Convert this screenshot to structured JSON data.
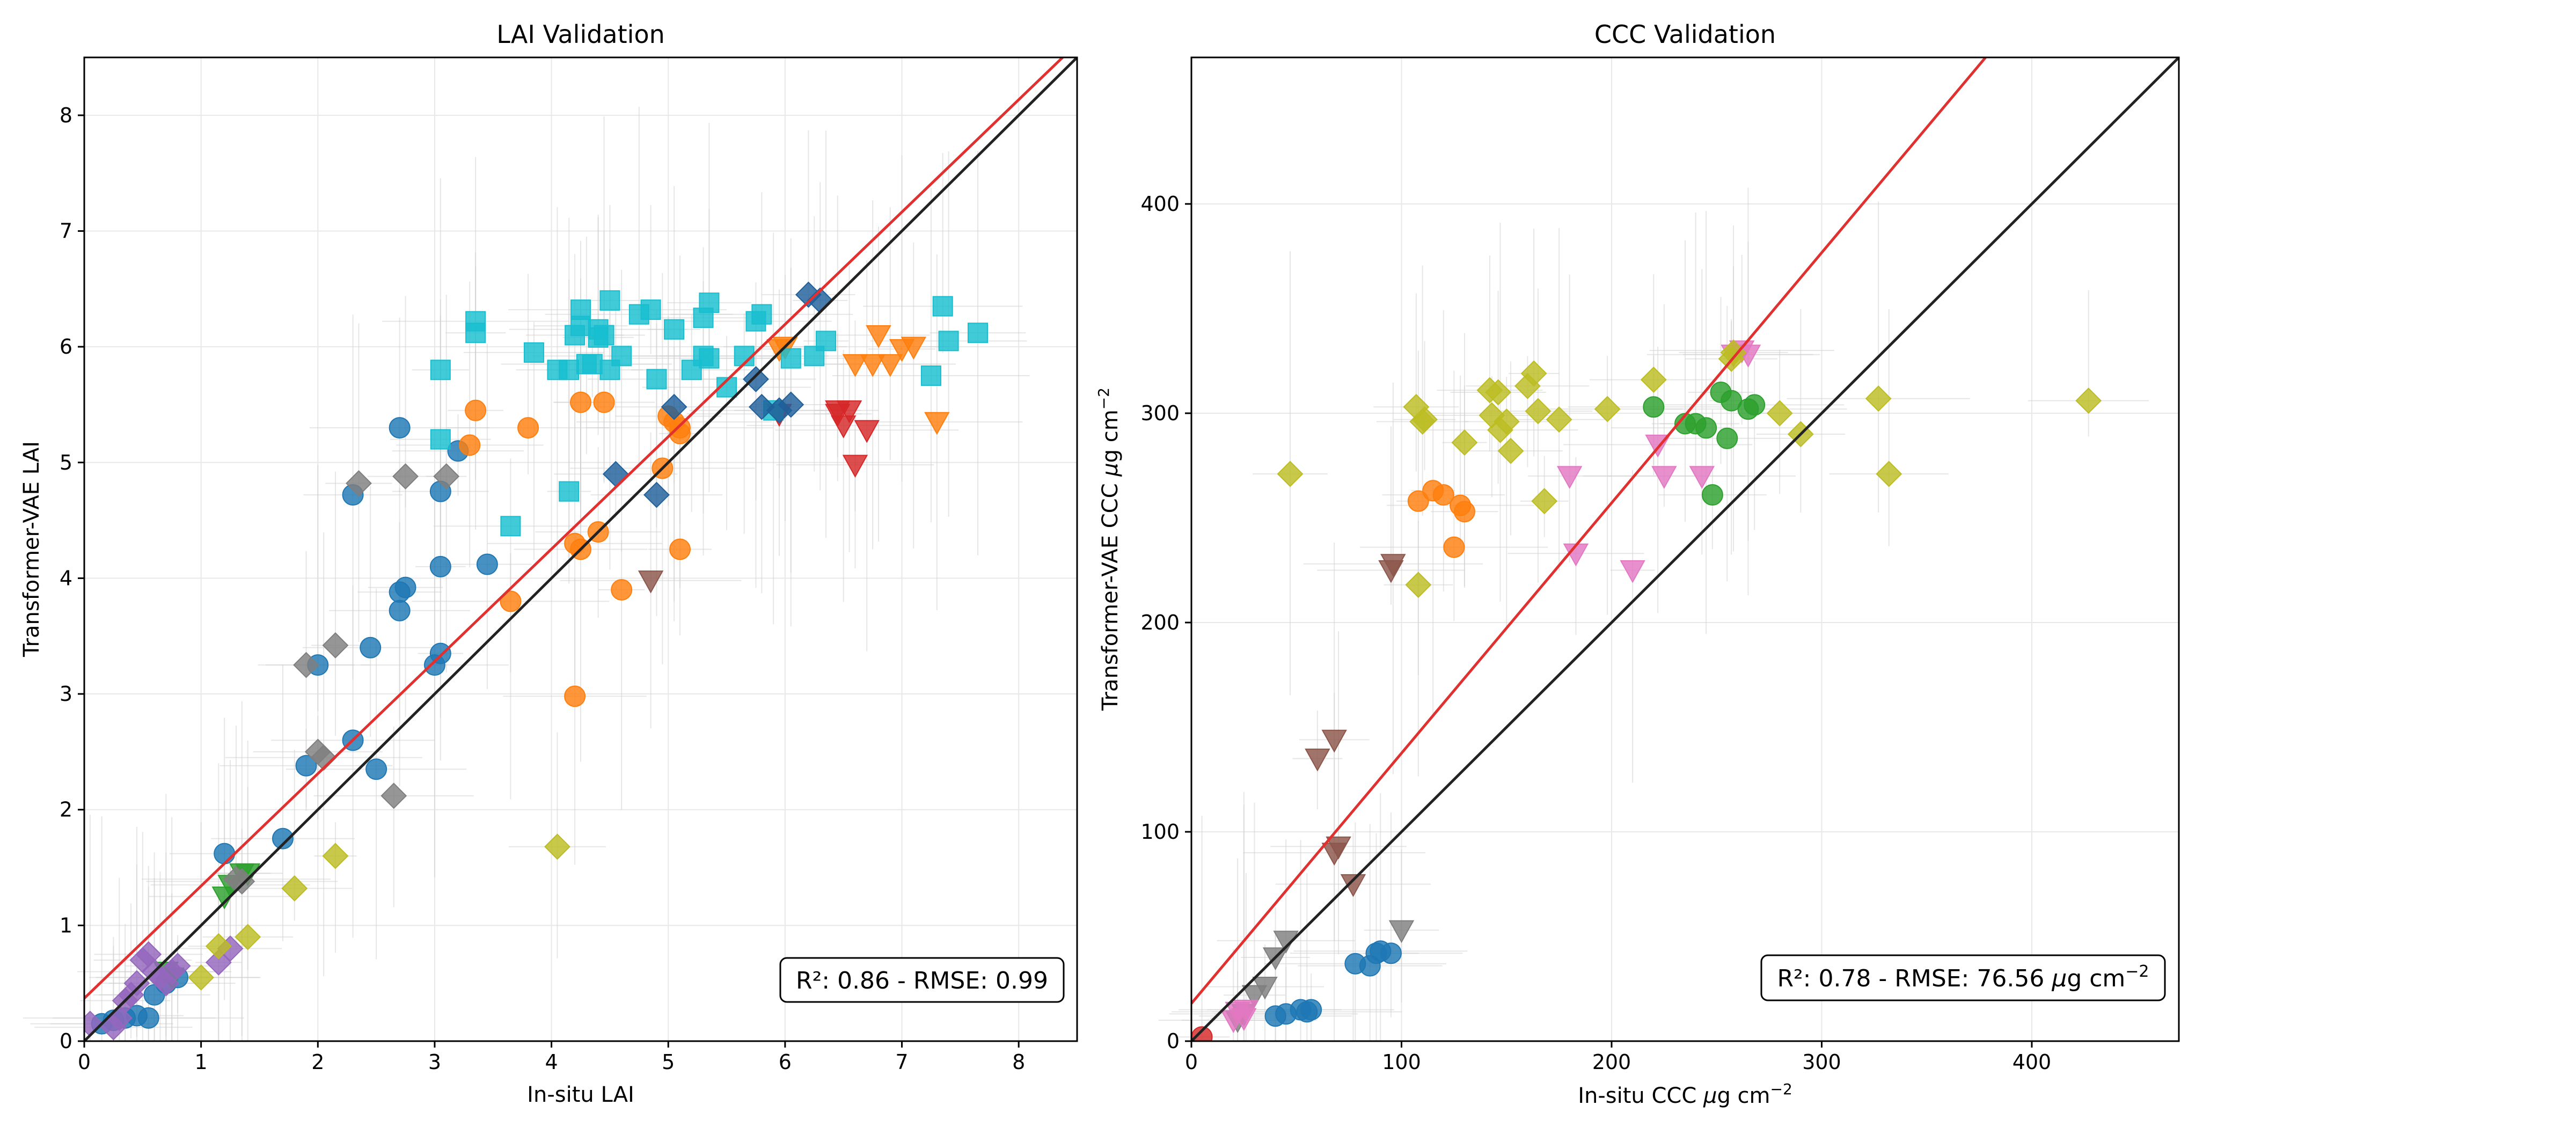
{
  "charts": [
    {
      "type": "scatter",
      "title": "LAI Validation",
      "xlabel": "In-situ LAI",
      "ylabel": "Transformer-VAE LAI",
      "xlim": [
        0,
        8.5
      ],
      "ylim": [
        0,
        8.5
      ],
      "xticks": [
        "0",
        "1",
        "2",
        "3",
        "4",
        "5",
        "6",
        "7",
        "8"
      ],
      "yticks": [
        "0",
        "1",
        "2",
        "3",
        "4",
        "5",
        "6",
        "7",
        "8"
      ],
      "grid": true,
      "annotation": "R²: 0.86 - RMSE: 0.99",
      "annotation_position": "bottom-right",
      "one_to_one_line": {
        "color": "#222222"
      },
      "regression_line": {
        "color": "#e03030",
        "x": [
          0,
          8.5
        ],
        "y": [
          0.37,
          8.62
        ]
      },
      "series": [
        {
          "color": "#1f77b4",
          "marker": "circle",
          "x": [
            0.15,
            0.25,
            0.35,
            0.45,
            0.55,
            0.6,
            0.7,
            0.8,
            1.2,
            1.7,
            1.9,
            2.0,
            2.3,
            2.3,
            2.45,
            2.5,
            2.7,
            2.7,
            2.75,
            2.7,
            3.0,
            3.05,
            3.05,
            3.05,
            3.2,
            3.45
          ],
          "y": [
            0.15,
            0.18,
            0.2,
            0.22,
            0.2,
            0.4,
            0.5,
            0.55,
            1.62,
            1.75,
            2.38,
            3.25,
            2.6,
            4.72,
            3.4,
            2.35,
            3.72,
            3.88,
            3.92,
            5.3,
            3.25,
            3.35,
            4.75,
            4.1,
            5.1,
            4.12
          ]
        },
        {
          "color": "#ff7f0e",
          "marker": "circle",
          "x": [
            3.3,
            3.35,
            3.65,
            3.8,
            4.2,
            4.2,
            4.25,
            4.25,
            4.4,
            4.45,
            4.6,
            4.95,
            5.0,
            5.05,
            5.1,
            5.1,
            5.1
          ],
          "y": [
            5.15,
            5.45,
            3.8,
            5.3,
            4.3,
            2.98,
            4.25,
            5.52,
            4.4,
            5.52,
            3.9,
            4.95,
            5.4,
            5.35,
            5.25,
            5.3,
            4.25
          ]
        },
        {
          "color": "#ff7f0e",
          "marker": "triangle-down",
          "x": [
            5.95,
            6.6,
            6.75,
            6.8,
            6.9,
            7.0,
            7.1,
            7.3,
            6.0
          ],
          "y": [
            5.98,
            5.85,
            5.85,
            6.1,
            5.85,
            5.98,
            6.0,
            5.35,
            6.0
          ]
        },
        {
          "color": "#2ca02c",
          "marker": "triangle-down",
          "x": [
            1.2,
            1.25,
            1.35,
            1.4,
            0.7,
            0.75
          ],
          "y": [
            1.25,
            1.35,
            1.45,
            1.45,
            0.6,
            0.55
          ]
        },
        {
          "color": "#d62728",
          "marker": "triangle-down",
          "x": [
            5.95,
            6.45,
            6.5,
            6.55,
            6.7,
            6.6,
            6.45
          ],
          "y": [
            5.42,
            5.45,
            5.32,
            5.45,
            5.28,
            4.98,
            5.42
          ]
        },
        {
          "color": "#9467bd",
          "marker": "diamond",
          "x": [
            0.05,
            0.25,
            0.3,
            0.35,
            0.4,
            0.45,
            0.5,
            0.55,
            0.6,
            0.65,
            0.7,
            0.75,
            0.8,
            1.15,
            1.25
          ],
          "y": [
            0.15,
            0.12,
            0.2,
            0.35,
            0.4,
            0.5,
            0.7,
            0.75,
            0.6,
            0.55,
            0.5,
            0.6,
            0.65,
            0.68,
            0.8
          ]
        },
        {
          "color": "#8c564b",
          "marker": "triangle-down",
          "x": [
            4.85
          ],
          "y": [
            3.98
          ]
        },
        {
          "color": "#7f7f7f",
          "marker": "diamond",
          "x": [
            1.3,
            1.35,
            1.9,
            2.0,
            2.05,
            2.15,
            2.35,
            2.65,
            2.75,
            3.1
          ],
          "y": [
            1.4,
            1.38,
            3.25,
            2.5,
            2.45,
            3.42,
            4.82,
            2.12,
            4.88,
            4.88
          ]
        },
        {
          "color": "#bcbd22",
          "marker": "diamond",
          "x": [
            1.0,
            1.15,
            1.4,
            1.8,
            2.15,
            4.05
          ],
          "y": [
            0.55,
            0.82,
            0.9,
            1.32,
            1.6,
            1.68
          ]
        },
        {
          "color": "#17becf",
          "marker": "square",
          "x": [
            3.35,
            3.35,
            3.05,
            3.05,
            3.65,
            3.85,
            4.05,
            4.15,
            4.2,
            4.25,
            4.25,
            4.3,
            4.35,
            4.4,
            4.45,
            4.5,
            4.6,
            4.75,
            4.85,
            4.9,
            5.05,
            5.2,
            5.3,
            5.3,
            5.35,
            5.35,
            5.5,
            5.65,
            5.75,
            5.8,
            5.9,
            6.05,
            6.25,
            6.35,
            7.25,
            7.35,
            7.4,
            7.65,
            4.15,
            4.5,
            4.4
          ],
          "y": [
            6.22,
            6.12,
            5.2,
            5.8,
            4.45,
            5.95,
            5.8,
            5.8,
            6.1,
            6.32,
            6.18,
            5.85,
            5.85,
            6.15,
            6.1,
            6.4,
            5.92,
            6.28,
            6.32,
            5.72,
            6.15,
            5.8,
            6.25,
            5.92,
            5.9,
            6.38,
            5.65,
            5.92,
            6.22,
            6.28,
            5.45,
            5.9,
            5.92,
            6.05,
            5.75,
            6.35,
            6.05,
            6.12,
            4.75,
            5.8,
            6.08
          ]
        },
        {
          "color": "#1f5f9a",
          "marker": "diamond",
          "x": [
            4.55,
            4.9,
            5.05,
            5.75,
            5.8,
            5.95,
            6.05,
            6.2,
            6.3
          ],
          "y": [
            4.9,
            4.72,
            5.48,
            5.72,
            5.48,
            5.45,
            5.5,
            6.45,
            6.4
          ]
        }
      ]
    },
    {
      "type": "scatter",
      "title": "CCC Validation",
      "xlabel_parts": [
        "In-situ CCC ",
        "μ",
        "g cm",
        "−2"
      ],
      "ylabel_parts": [
        "Transformer-VAE CCC ",
        "μ",
        "g cm",
        "−2"
      ],
      "xlim": [
        0,
        470
      ],
      "ylim": [
        0,
        470
      ],
      "xticks": [
        "0",
        "100",
        "200",
        "300",
        "400"
      ],
      "yticks": [
        "0",
        "100",
        "200",
        "300",
        "400"
      ],
      "grid": true,
      "annotation_parts": [
        "R²: 0.78 - RMSE: 76.56 ",
        "μ",
        "g cm",
        "−2"
      ],
      "annotation_position": "bottom-right",
      "one_to_one_line": {
        "color": "#222222"
      },
      "regression_line": {
        "color": "#e03030",
        "x": [
          0,
          378
        ],
        "y": [
          18,
          470
        ]
      },
      "series": [
        {
          "color": "#1f77b4",
          "marker": "circle",
          "x": [
            40,
            45,
            52,
            55,
            57,
            78,
            85,
            88,
            90,
            95
          ],
          "y": [
            12,
            13,
            15,
            14,
            15,
            37,
            36,
            42,
            43,
            42
          ]
        },
        {
          "color": "#ff7f0e",
          "marker": "circle",
          "x": [
            108,
            115,
            120,
            125,
            128,
            130
          ],
          "y": [
            258,
            263,
            261,
            236,
            256,
            253
          ]
        },
        {
          "color": "#2ca02c",
          "marker": "circle",
          "x": [
            220,
            235,
            240,
            245,
            248,
            252,
            255,
            257,
            265,
            268
          ],
          "y": [
            303,
            295,
            295,
            293,
            261,
            310,
            288,
            306,
            302,
            304
          ]
        },
        {
          "color": "#d62728",
          "marker": "circle",
          "x": [
            5
          ],
          "y": [
            2
          ]
        },
        {
          "color": "#8c564b",
          "marker": "triangle-down",
          "x": [
            60,
            68,
            68,
            70,
            77,
            95,
            96
          ],
          "y": [
            135,
            144,
            90,
            93,
            75,
            225,
            228
          ]
        },
        {
          "color": "#7f7f7f",
          "marker": "triangle-down",
          "x": [
            22,
            25,
            30,
            35,
            40,
            45,
            100
          ],
          "y": [
            10,
            13,
            22,
            26,
            40,
            48,
            53
          ]
        },
        {
          "color": "#e377c2",
          "marker": "triangle-down",
          "x": [
            20,
            22,
            25,
            26,
            180,
            183,
            210,
            222,
            225,
            243,
            258,
            262,
            265
          ],
          "y": [
            10,
            14,
            11,
            15,
            270,
            233,
            225,
            285,
            270,
            270,
            328,
            330,
            328
          ]
        },
        {
          "color": "#bcbd22",
          "marker": "diamond",
          "x": [
            47,
            107,
            108,
            110,
            111,
            130,
            142,
            143,
            146,
            147,
            150,
            152,
            160,
            163,
            165,
            168,
            175,
            198,
            220,
            257,
            258,
            280,
            290,
            327,
            332,
            427
          ],
          "y": [
            271,
            303,
            218,
            296,
            297,
            286,
            311,
            299,
            310,
            292,
            296,
            282,
            313,
            319,
            301,
            258,
            297,
            302,
            316,
            326,
            329,
            300,
            290,
            307,
            271,
            306
          ]
        }
      ]
    }
  ]
}
